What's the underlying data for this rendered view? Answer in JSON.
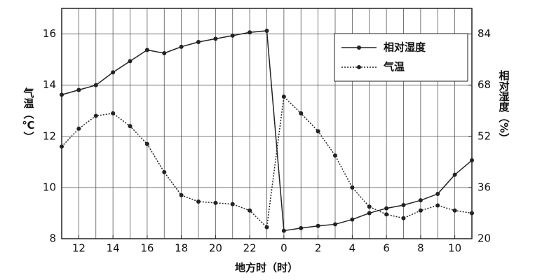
{
  "chart_data": {
    "type": "line",
    "x_label": "地方时（时）",
    "y_label": "气温（℃）",
    "y2_label": "相对湿度（%）",
    "x": [
      11,
      12,
      13,
      14,
      15,
      16,
      17,
      18,
      19,
      20,
      21,
      22,
      23,
      24,
      25,
      26,
      27,
      28,
      29,
      30,
      31,
      32,
      33,
      34,
      35
    ],
    "xlim": [
      11,
      35
    ],
    "xticks": [
      12,
      14,
      16,
      18,
      20,
      22,
      {
        "value": 24,
        "label": "0"
      },
      {
        "value": 26,
        "label": "2"
      },
      {
        "value": 28,
        "label": "4"
      },
      {
        "value": 30,
        "label": "6"
      },
      {
        "value": 32,
        "label": "8"
      },
      {
        "value": 34,
        "label": "10"
      }
    ],
    "ylim": [
      8,
      17
    ],
    "yticks": [
      8,
      10,
      12,
      14,
      16
    ],
    "y2lim": [
      20,
      92
    ],
    "y2ticks": [
      20,
      36,
      52,
      68,
      84
    ],
    "grid": true,
    "legend": "upper right",
    "series": [
      {
        "name": "相对湿度",
        "color": "#222",
        "style": "solid",
        "axis": "y2",
        "values": [
          65,
          66.5,
          68,
          72,
          75.5,
          79,
          78,
          80,
          81.5,
          82.5,
          83.5,
          84.5,
          85,
          22.5,
          23.3,
          24,
          24.5,
          26,
          28,
          29.5,
          30.5,
          32,
          34,
          40,
          44.5
        ]
      },
      {
        "name": "气温",
        "color": "#222",
        "style": "dotted",
        "values": [
          11.6,
          12.3,
          12.8,
          12.9,
          12.4,
          11.7,
          10.6,
          9.7,
          9.45,
          9.4,
          9.35,
          9.1,
          8.45,
          13.55,
          12.9,
          12.2,
          11.25,
          10.0,
          9.25,
          8.95,
          8.8,
          9.1,
          9.3,
          9.1,
          9.0
        ]
      }
    ]
  }
}
